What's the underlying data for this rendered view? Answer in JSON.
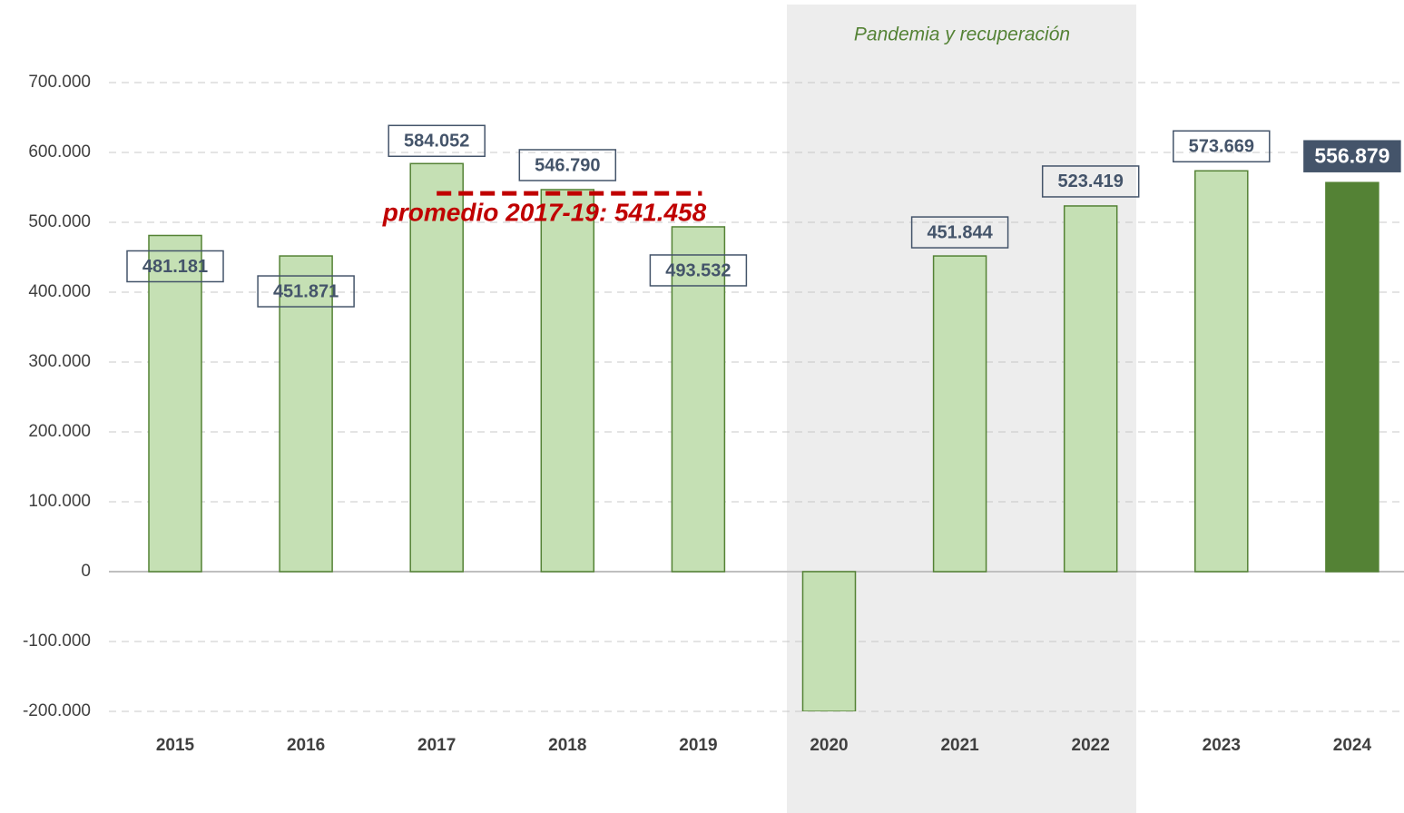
{
  "chart_data": {
    "type": "bar",
    "annotation": "Pandemia y recuperación",
    "categories": [
      "2015",
      "2016",
      "2017",
      "2018",
      "2019",
      "2020",
      "2021",
      "2022",
      "2023",
      "2024"
    ],
    "values": [
      481181,
      451871,
      584052,
      546790,
      493532,
      -200000,
      451844,
      523419,
      573669,
      556879
    ],
    "value_labels": [
      "481.181",
      "451.871",
      "584.052",
      "546.790",
      "493.532",
      null,
      "451.844",
      "523.419",
      "573.669",
      "556.879"
    ],
    "colors": [
      "#c5e0b4",
      "#c5e0b4",
      "#c5e0b4",
      "#c5e0b4",
      "#c5e0b4",
      "#c5e0b4",
      "#c5e0b4",
      "#c5e0b4",
      "#c5e0b4",
      "#548235"
    ],
    "average": {
      "value": 541458,
      "label": "promedio 2017-19: 541.458",
      "color": "#c00000"
    },
    "ylim": [
      -200000,
      700000
    ],
    "yticks": [
      {
        "value": -200000,
        "label": "-200.000"
      },
      {
        "value": -100000,
        "label": "-100.000"
      },
      0,
      {
        "value": 100000,
        "label": "100.000"
      },
      {
        "value": 200000,
        "label": "200.000"
      },
      {
        "value": 300000,
        "label": "300.000"
      },
      {
        "value": 400000,
        "label": "400.000"
      },
      {
        "value": 500000,
        "label": "500.000"
      },
      {
        "value": 600000,
        "label": "600.000"
      },
      {
        "value": 700000,
        "label": "700.000"
      }
    ],
    "grid": true
  }
}
